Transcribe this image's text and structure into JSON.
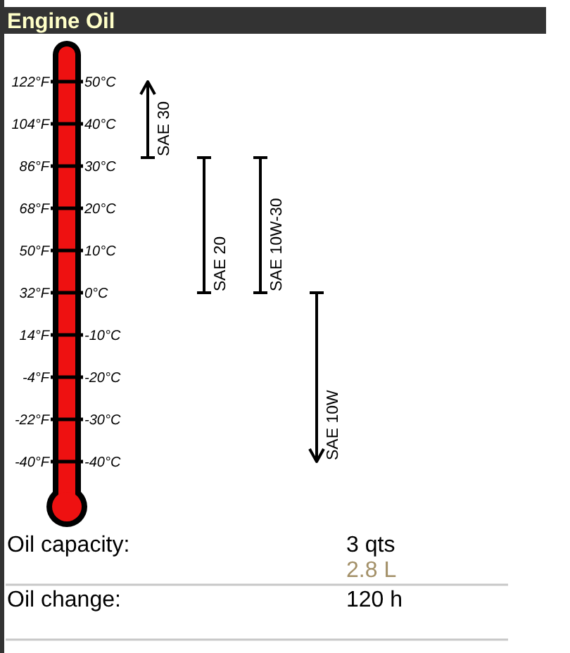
{
  "chart_data": {
    "type": "bar",
    "title": "Engine Oil",
    "categories": [
      "SAE 30",
      "SAE 20",
      "SAE 10W-30",
      "SAE 10W"
    ],
    "base": [
      32,
      0,
      0,
      -40
    ],
    "values": [
      18,
      32,
      32,
      40
    ],
    "color": "#000000",
    "ylim": [
      -40,
      50
    ],
    "yticks": [
      {
        "value": 50,
        "label": "50°C"
      },
      {
        "value": 40,
        "label": "40°C"
      },
      {
        "value": 30,
        "label": "30°C"
      },
      {
        "value": 20,
        "label": "20°C"
      },
      {
        "value": 10,
        "label": "10°C"
      },
      {
        "value": 0,
        "label": "0°C"
      },
      {
        "value": -10,
        "label": "-10°C"
      },
      {
        "value": -20,
        "label": "-20°C"
      },
      {
        "value": -30,
        "label": "-30°C"
      },
      {
        "value": -40,
        "label": "-40°C"
      }
    ],
    "y2lim": [
      -40,
      122
    ],
    "y2ticks": [
      {
        "value": 122,
        "label": "122°F"
      },
      {
        "value": 104,
        "label": "104°F"
      },
      {
        "value": 86,
        "label": "86°F"
      },
      {
        "value": 68,
        "label": "68°F"
      },
      {
        "value": 50,
        "label": "50°F"
      },
      {
        "value": 32,
        "label": "32°F"
      },
      {
        "value": 14,
        "label": "14°F"
      },
      {
        "value": -4,
        "label": "-4°F"
      },
      {
        "value": -22,
        "label": "-22°F"
      },
      {
        "value": -40,
        "label": "-40°F"
      }
    ],
    "annotations": [
      "Oil capacity:",
      "3 qts",
      "2.8 L",
      "Oil change:",
      "120 h"
    ]
  }
}
